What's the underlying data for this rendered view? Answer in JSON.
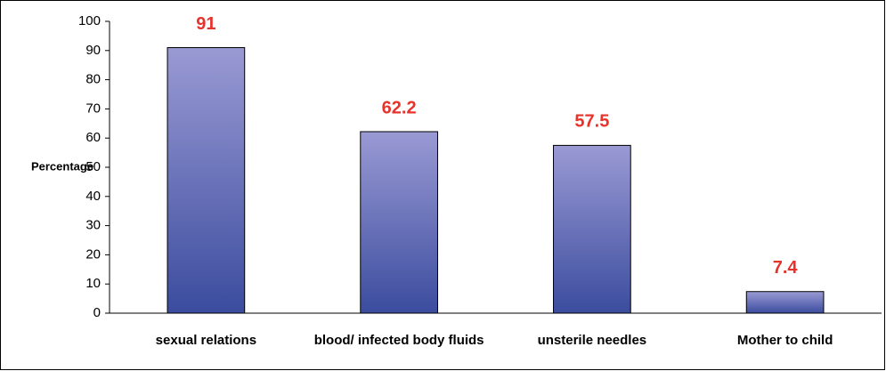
{
  "chart_data": {
    "type": "bar",
    "y_label": "Percentage",
    "categories": [
      "sexual relations",
      "blood/ infected body fluids",
      "unsterile needles",
      "Mother to child"
    ],
    "values": [
      91,
      62.2,
      57.5,
      7.4
    ],
    "color": "#3b4c9e",
    "label_color": "#e8322c",
    "ylim": [
      0,
      100
    ],
    "yticks": [
      0,
      10,
      20,
      30,
      40,
      50,
      60,
      70,
      80,
      90,
      100
    ],
    "grid": false
  }
}
